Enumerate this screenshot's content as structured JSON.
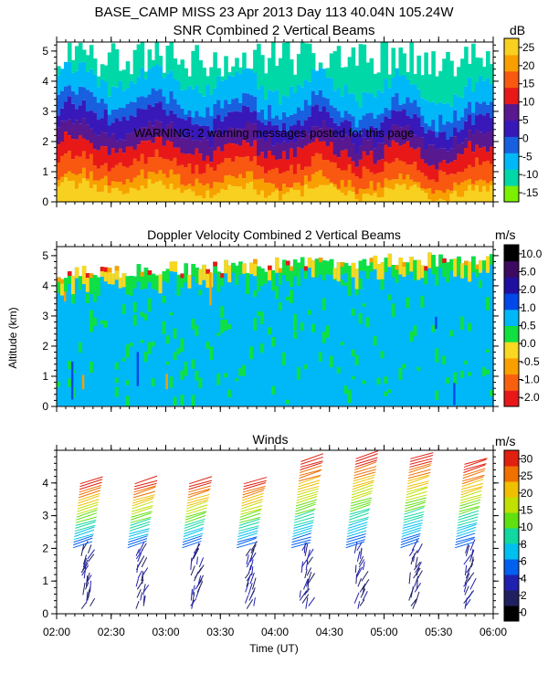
{
  "header": {
    "line1": "BASE_CAMP MISS  23 Apr 2013 Day 113 40.04N 105.24W",
    "line2": "SNR Combined 2 Vertical Beams"
  },
  "warning_text": "WARNING: 2 warning messages posted for this page",
  "colors": {
    "snr_scale": [
      "#7cf000",
      "#00d8a8",
      "#00b8f8",
      "#1860e0",
      "#3818b8",
      "#581890",
      "#e81818",
      "#f85810",
      "#f8a000",
      "#f8d020"
    ],
    "vel_scale": [
      "#e81818",
      "#f86010",
      "#f8a000",
      "#f8d820",
      "#10e040",
      "#00b8f8",
      "#0048e8",
      "#2010a0",
      "#3c0a60",
      "#000000"
    ],
    "wind_scale": [
      "#000000",
      "#202060",
      "#2020b0",
      "#0060f0",
      "#00c0f0",
      "#10d8a0",
      "#60e010",
      "#c0e000",
      "#f0c000",
      "#f07000",
      "#e02010"
    ]
  },
  "chart_data": [
    {
      "type": "heatmap",
      "title": "SNR Combined 2 Vertical Beams",
      "ylabel": "",
      "ylim": [
        0,
        5.3
      ],
      "yticks": [
        "0",
        "1",
        "2",
        "3",
        "4",
        "5"
      ],
      "colorbar": {
        "unit": "dB",
        "labels": [
          "25",
          "20",
          "15",
          "10",
          "5",
          "0",
          "-5",
          "-10",
          "-15"
        ],
        "range": [
          -17,
          28
        ]
      },
      "layers": [
        {
          "min": 25,
          "top_km": 0.3
        },
        {
          "min": 20,
          "top_km": 0.6
        },
        {
          "min": 15,
          "top_km": 1.1
        },
        {
          "min": 10,
          "top_km": 1.6
        },
        {
          "min": 5,
          "top_km": 2.1
        },
        {
          "min": 0,
          "top_km": 2.6
        },
        {
          "min": -5,
          "top_km": 3.0
        },
        {
          "min": -10,
          "top_km": 3.7
        },
        {
          "min": -15,
          "top_km": 4.6
        }
      ]
    },
    {
      "type": "heatmap",
      "title": "Doppler Velocity Combined 2 Vertical Beams",
      "ylabel": "Altitude (km)",
      "ylim": [
        0,
        5.3
      ],
      "yticks": [
        "0",
        "1",
        "2",
        "3",
        "4",
        "5"
      ],
      "colorbar": {
        "unit": "m/s",
        "labels": [
          "10.0",
          "5.0",
          "2.0",
          "1.0",
          "0.5",
          "0.0",
          "-0.5",
          "-1.0",
          "-2.0"
        ]
      },
      "data_top_km": 4.3,
      "dominant_value_ms": 1.0
    },
    {
      "type": "wind_barbs",
      "title": "Winds",
      "xlabel": "Time (UT)",
      "ylim": [
        0,
        5
      ],
      "yticks": [
        "0",
        "1",
        "2",
        "3",
        "4"
      ],
      "x_ticks": [
        "02:00",
        "02:30",
        "03:00",
        "03:30",
        "04:00",
        "04:30",
        "05:00",
        "05:30",
        "06:00"
      ],
      "x_range_hours": [
        2.0,
        6.0
      ],
      "colorbar": {
        "unit": "m/s",
        "labels": [
          "30",
          "25",
          "20",
          "15",
          "10",
          "8",
          "6",
          "4",
          "2",
          "0"
        ]
      },
      "profiles": [
        {
          "time": 2.2,
          "top_km": 4.0
        },
        {
          "time": 2.7,
          "top_km": 4.0
        },
        {
          "time": 3.2,
          "top_km": 4.0
        },
        {
          "time": 3.7,
          "top_km": 4.0
        },
        {
          "time": 4.2,
          "top_km": 4.7
        },
        {
          "time": 4.7,
          "top_km": 4.8
        },
        {
          "time": 5.2,
          "top_km": 4.8
        },
        {
          "time": 5.7,
          "top_km": 4.6
        }
      ]
    }
  ]
}
